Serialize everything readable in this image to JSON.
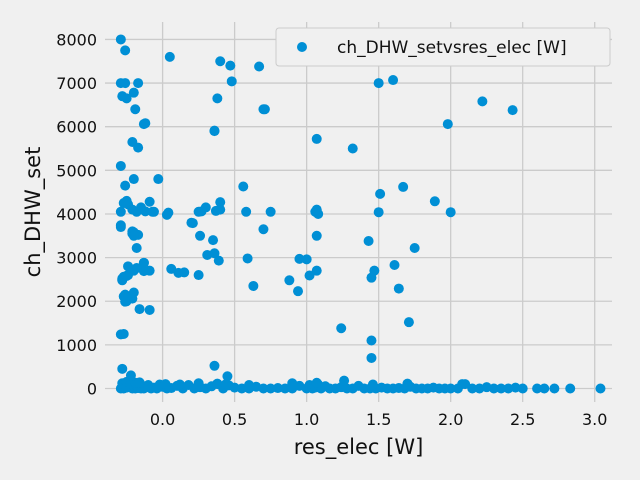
{
  "chart_data": {
    "type": "scatter",
    "xlabel": "res_elec [W]",
    "ylabel": "ch_DHW_set",
    "xlim": [
      -0.4,
      3.12
    ],
    "ylim": [
      -310,
      8400
    ],
    "xticks": [
      0.0,
      0.5,
      1.0,
      1.5,
      2.0,
      2.5,
      3.0
    ],
    "xtick_labels": [
      "0.0",
      "0.5",
      "1.0",
      "1.5",
      "2.0",
      "2.5",
      "3.0"
    ],
    "yticks": [
      0,
      1000,
      2000,
      3000,
      4000,
      5000,
      6000,
      7000,
      8000
    ],
    "ytick_labels": [
      "0",
      "1000",
      "2000",
      "3000",
      "4000",
      "5000",
      "6000",
      "7000",
      "8000"
    ],
    "grid": true,
    "legend_position": "top-right",
    "series": [
      {
        "name": "ch_DHW_setvsres_elec [W]",
        "color": "#008fd5",
        "x": [
          -0.29,
          -0.28,
          -0.27,
          -0.25,
          -0.22,
          -0.21,
          -0.2,
          -0.19,
          -0.18,
          -0.17,
          -0.15,
          -0.14,
          -0.13,
          -0.12,
          -0.1,
          -0.08,
          -0.06,
          -0.04,
          -0.02,
          0.0,
          0.03,
          0.06,
          0.1,
          0.14,
          0.18,
          0.22,
          0.26,
          0.3,
          0.34,
          0.38,
          0.42,
          0.46,
          0.5,
          0.55,
          0.6,
          0.65,
          0.7,
          0.75,
          0.8,
          0.85,
          0.9,
          0.95,
          1.0,
          1.02,
          1.04,
          1.06,
          1.08,
          1.1,
          1.13,
          1.16,
          1.2,
          1.24,
          1.28,
          1.32,
          1.36,
          1.4,
          1.44,
          1.48,
          1.52,
          1.56,
          1.6,
          1.64,
          1.68,
          1.72,
          1.76,
          1.8,
          1.84,
          1.88,
          1.92,
          1.96,
          2.0,
          2.05,
          2.1,
          2.15,
          2.2,
          2.25,
          2.3,
          2.35,
          2.4,
          2.45,
          2.5,
          2.6,
          2.65,
          2.72,
          2.83,
          3.04,
          -0.28,
          -0.25,
          -0.22,
          -0.19,
          -0.16,
          0.02,
          0.12,
          0.25,
          0.38,
          0.44,
          0.6,
          0.9,
          1.07,
          1.26,
          1.46,
          1.7,
          2.08,
          -0.29,
          -0.28,
          -0.26,
          -0.25,
          -0.21,
          -0.2,
          -0.19,
          -0.17,
          -0.13,
          0.05,
          0.36,
          0.38,
          0.4,
          0.47,
          0.48,
          0.67,
          0.71,
          1.28,
          1.5,
          1.6,
          1.97,
          -0.29,
          -0.26,
          -0.2,
          -0.17,
          -0.12,
          0.36,
          0.7,
          1.07,
          1.98,
          2.22,
          2.43,
          -0.29,
          -0.26,
          1.32,
          -0.29,
          -0.27,
          -0.25,
          -0.24,
          -0.21,
          -0.18,
          -0.15,
          -0.12,
          -0.09,
          -0.06,
          -0.03,
          -0.07,
          0.03,
          0.04,
          0.25,
          0.27,
          0.3,
          0.37,
          0.4,
          0.4,
          0.56,
          0.58,
          0.75,
          1.06,
          1.07,
          1.08,
          1.5,
          1.51,
          1.67,
          1.89,
          2.0,
          -0.29,
          -0.28,
          -0.27,
          -0.25,
          -0.24,
          -0.22,
          -0.21,
          -0.2,
          -0.18,
          -0.17,
          -0.13,
          -0.13,
          -0.29,
          -0.28,
          -0.27,
          -0.26,
          -0.21,
          -0.2,
          -0.2,
          -0.18,
          -0.16,
          -0.13,
          -0.09,
          0.06,
          0.11,
          0.15,
          0.2,
          0.21,
          0.25,
          0.26,
          0.31,
          0.35,
          0.36,
          0.39,
          0.59,
          0.63,
          0.7,
          0.88,
          0.94,
          0.95,
          1.0,
          1.02,
          1.07,
          1.07,
          1.43,
          1.45,
          1.47,
          1.61,
          1.64,
          1.75,
          -0.29,
          -0.28,
          -0.26,
          -0.25,
          -0.24,
          -0.21,
          -0.2,
          -0.09,
          -0.28,
          -0.22,
          0.36,
          0.45,
          -0.27,
          1.24,
          1.45,
          1.71,
          1.45
        ],
        "y": [
          0,
          50,
          0,
          20,
          90,
          0,
          40,
          0,
          70,
          10,
          0,
          60,
          0,
          30,
          80,
          0,
          20,
          0,
          90,
          40,
          0,
          10,
          60,
          0,
          80,
          0,
          30,
          0,
          50,
          100,
          0,
          70,
          20,
          0,
          0,
          40,
          0,
          0,
          10,
          0,
          0,
          60,
          0,
          80,
          0,
          20,
          90,
          0,
          50,
          0,
          0,
          30,
          0,
          0,
          60,
          0,
          0,
          0,
          20,
          0,
          0,
          10,
          0,
          40,
          0,
          0,
          0,
          20,
          0,
          0,
          0,
          0,
          100,
          0,
          0,
          30,
          0,
          0,
          0,
          20,
          0,
          0,
          0,
          0,
          0,
          0,
          120,
          150,
          110,
          130,
          140,
          100,
          90,
          120,
          110,
          100,
          80,
          120,
          130,
          180,
          90,
          110,
          100,
          7000,
          6700,
          7000,
          6650,
          5650,
          6780,
          6400,
          7000,
          6060,
          7600,
          5900,
          6650,
          7500,
          7400,
          7040,
          7380,
          6400,
          7500,
          7000,
          7070,
          8100,
          5100,
          4650,
          4800,
          5520,
          6080,
          5910,
          6400,
          5720,
          6060,
          6580,
          6380,
          8000,
          7750,
          5500,
          4050,
          4250,
          4300,
          4220,
          4100,
          4050,
          4150,
          4060,
          4280,
          4050,
          4800,
          4050,
          3980,
          4030,
          4050,
          4060,
          4150,
          4070,
          4100,
          4270,
          4630,
          4050,
          4050,
          4050,
          4100,
          4000,
          4040,
          4460,
          4620,
          4290,
          4040,
          3740,
          2490,
          2560,
          2000,
          2600,
          2120,
          2060,
          3580,
          3220,
          3520,
          2880,
          2690,
          3700,
          2520,
          2110,
          2150,
          3550,
          2700,
          2200,
          2760,
          1820,
          2880,
          2700,
          2740,
          2650,
          2660,
          3800,
          3790,
          2600,
          3500,
          3060,
          3400,
          3100,
          2930,
          2980,
          2350,
          3650,
          2480,
          2230,
          2970,
          2960,
          2590,
          3500,
          2700,
          3380,
          2540,
          2700,
          2830,
          2290,
          3220,
          1240,
          2480,
          1990,
          2580,
          2800,
          3600,
          3500,
          1800,
          450,
          300,
          520,
          280,
          1250,
          1380,
          1100,
          1520,
          700
        ]
      }
    ]
  }
}
